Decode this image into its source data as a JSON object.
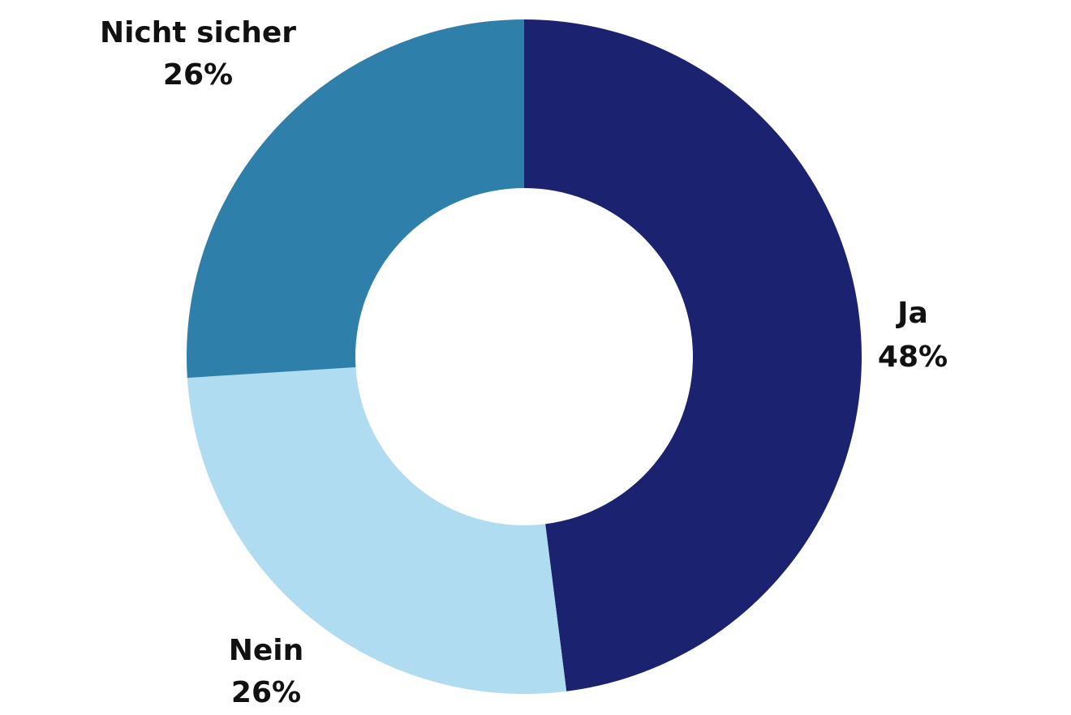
{
  "chart_data": {
    "type": "pie",
    "variant": "donut",
    "title": "",
    "slices": [
      {
        "label": "Ja",
        "value": 48,
        "value_label": "48%",
        "color": "#1b2370"
      },
      {
        "label": "Nein",
        "value": 26,
        "value_label": "26%",
        "color": "#b0dcf2"
      },
      {
        "label": "Nicht sicher",
        "value": 26,
        "value_label": "26%",
        "color": "#2e80aa"
      }
    ],
    "start_angle": "12 o'clock",
    "direction": "clockwise",
    "legend": "none (labels beside slices)"
  }
}
